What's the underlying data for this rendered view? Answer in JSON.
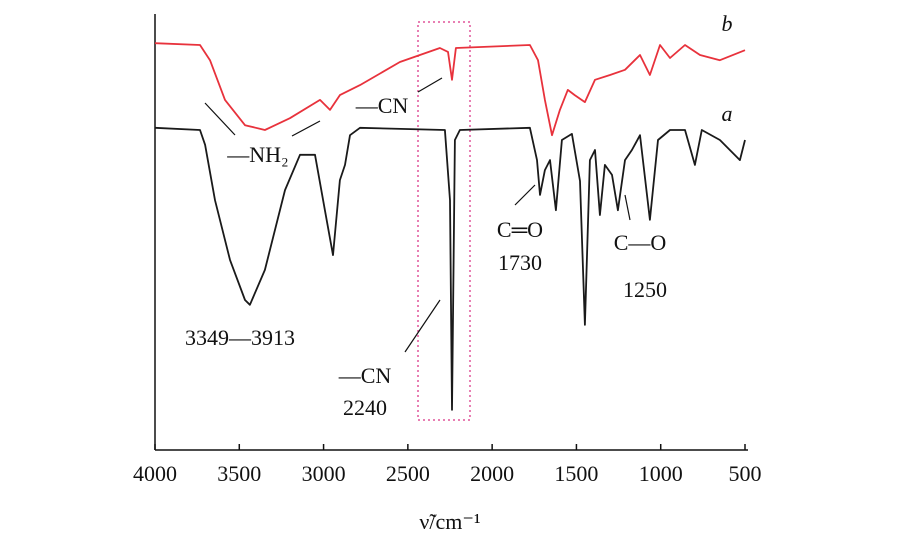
{
  "chart_data": {
    "type": "line",
    "xlabel": "ν̃/cm⁻¹",
    "xlim": [
      4000,
      500
    ],
    "xticks": [
      4000,
      3500,
      3000,
      2500,
      2000,
      1500,
      1000,
      500
    ],
    "ylim": [
      0,
      100
    ],
    "series": [
      {
        "name": "a",
        "color": "#1a1a1a",
        "x": [
          4000,
          3733,
          3703,
          3644,
          3555,
          3466,
          3437,
          3348,
          3229,
          3140,
          3051,
          2992,
          2944,
          2903,
          2873,
          2843,
          2784,
          2280,
          2250,
          2238,
          2221,
          2191,
          1776,
          1734,
          1716,
          1687,
          1657,
          1622,
          1586,
          1527,
          1479,
          1450,
          1420,
          1390,
          1361,
          1331,
          1289,
          1254,
          1212,
          1171,
          1123,
          1064,
          1016,
          945,
          856,
          797,
          756,
          649,
          530,
          500
        ],
        "values": [
          73.9,
          73.4,
          70.0,
          57.3,
          43.6,
          34.4,
          33.3,
          41.3,
          59.6,
          67.7,
          67.7,
          55.0,
          44.7,
          61.9,
          65.4,
          72.2,
          73.9,
          73.4,
          57.3,
          9.2,
          71.1,
          73.4,
          73.9,
          66.5,
          58.5,
          64.2,
          66.5,
          55.0,
          71.1,
          72.5,
          61.7,
          28.7,
          66.5,
          68.8,
          53.9,
          65.4,
          63.1,
          55.0,
          66.5,
          68.8,
          72.2,
          52.8,
          71.1,
          73.4,
          73.4,
          65.4,
          73.4,
          71.1,
          66.5,
          71.1
        ]
      },
      {
        "name": "b",
        "color": "#e8323c",
        "x": [
          4000,
          3733,
          3674,
          3585,
          3466,
          3348,
          3200,
          3021,
          2962,
          2903,
          2784,
          2547,
          2310,
          2262,
          2238,
          2215,
          1776,
          1728,
          1687,
          1645,
          1598,
          1551,
          1510,
          1450,
          1390,
          1301,
          1212,
          1123,
          1064,
          1004,
          945,
          856,
          767,
          649,
          500
        ],
        "values": [
          93.3,
          92.9,
          89.4,
          80.3,
          74.5,
          73.4,
          76.1,
          80.3,
          78.0,
          81.4,
          83.7,
          89.0,
          92.2,
          91.3,
          84.9,
          92.2,
          92.9,
          89.4,
          80.3,
          72.2,
          78.0,
          82.6,
          81.4,
          79.8,
          84.9,
          86.0,
          87.2,
          90.6,
          86.0,
          92.9,
          89.9,
          92.9,
          90.6,
          89.4,
          91.7
        ]
      }
    ],
    "annotations": [
      "—NH₂",
      "—CN",
      "3349—3913",
      "—CN",
      "2240",
      "C═O",
      "1730",
      "C—O",
      "1250"
    ]
  }
}
